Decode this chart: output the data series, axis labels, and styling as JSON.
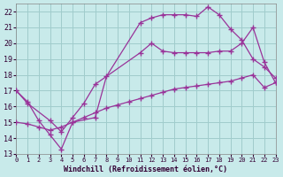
{
  "xlabel": "Windchill (Refroidissement éolien,°C)",
  "bg_color": "#c8eaea",
  "grid_color": "#a0cccc",
  "line_color": "#993399",
  "xlim": [
    0,
    23
  ],
  "ylim": [
    13,
    22.5
  ],
  "xticks": [
    0,
    1,
    2,
    3,
    4,
    5,
    6,
    7,
    8,
    9,
    10,
    11,
    12,
    13,
    14,
    15,
    16,
    17,
    18,
    19,
    20,
    21,
    22,
    23
  ],
  "yticks": [
    13,
    14,
    15,
    16,
    17,
    18,
    19,
    20,
    21,
    22
  ],
  "series1_x": [
    0,
    1,
    2,
    3,
    4,
    5,
    7,
    8,
    11,
    12,
    13,
    14,
    15,
    16,
    17,
    18,
    19,
    20,
    21,
    22,
    23
  ],
  "series1_y": [
    17.0,
    16.3,
    15.1,
    14.2,
    13.3,
    15.0,
    15.3,
    17.9,
    21.3,
    21.6,
    21.8,
    21.8,
    21.8,
    21.7,
    22.3,
    21.8,
    20.9,
    20.2,
    19.0,
    18.5,
    17.8
  ],
  "series2_x": [
    0,
    1,
    3,
    4,
    5,
    6,
    7,
    11,
    12,
    13,
    14,
    15,
    16,
    17,
    18,
    19,
    20,
    21,
    22,
    23
  ],
  "series2_y": [
    17.0,
    16.2,
    15.1,
    14.4,
    15.3,
    16.2,
    17.4,
    19.4,
    20.0,
    19.5,
    19.4,
    19.4,
    19.4,
    19.4,
    19.5,
    19.5,
    20.0,
    21.0,
    18.8,
    17.5
  ],
  "series3_x": [
    0,
    1,
    2,
    3,
    4,
    5,
    6,
    7,
    8,
    9,
    10,
    11,
    12,
    13,
    14,
    15,
    16,
    17,
    18,
    19,
    20,
    21,
    22,
    23
  ],
  "series3_y": [
    15.0,
    14.9,
    14.7,
    14.5,
    14.7,
    15.0,
    15.3,
    15.6,
    15.9,
    16.1,
    16.3,
    16.5,
    16.7,
    16.9,
    17.1,
    17.2,
    17.3,
    17.4,
    17.5,
    17.6,
    17.8,
    18.0,
    17.2,
    17.5
  ]
}
